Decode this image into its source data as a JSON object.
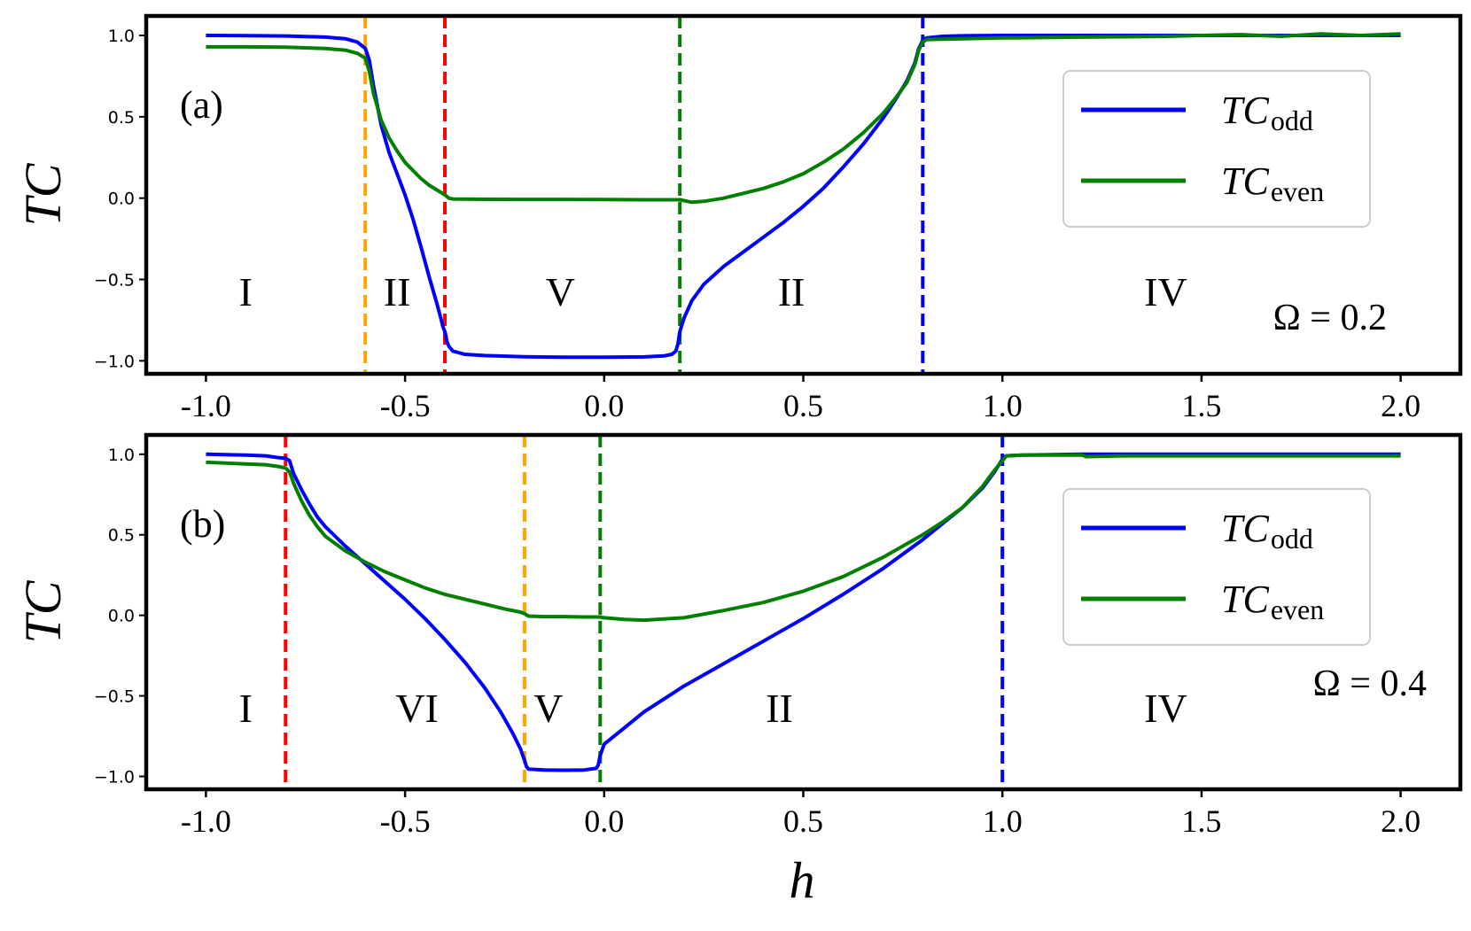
{
  "chart_data": [
    {
      "type": "line",
      "panel_label": "(a)",
      "annotation": "Ω = 0.2",
      "xlabel": "",
      "ylabel": "TC",
      "xlim": [
        -1.15,
        2.15
      ],
      "ylim": [
        -1.08,
        1.12
      ],
      "xticks": [
        "-1.0",
        "-0.5",
        "0.0",
        "0.5",
        "1.0",
        "1.5",
        "2.0"
      ],
      "xtick_values": [
        -1.0,
        -0.5,
        0.0,
        0.5,
        1.0,
        1.5,
        2.0
      ],
      "yticks": [
        "1.0",
        "0.5",
        "0.0",
        "−0.5",
        "−1.0"
      ],
      "ytick_values": [
        1.0,
        0.5,
        0.0,
        -0.5,
        -1.0
      ],
      "legend": {
        "position": "upper-right",
        "entries": [
          {
            "main": "TC",
            "sub": "odd",
            "color": "#0000ff"
          },
          {
            "main": "TC",
            "sub": "even",
            "color": "#007f00"
          }
        ]
      },
      "vlines": [
        {
          "x": -0.6,
          "color": "#ffa500"
        },
        {
          "x": -0.4,
          "color": "#ff0000"
        },
        {
          "x": 0.19,
          "color": "#007f00"
        },
        {
          "x": 0.8,
          "color": "#0000ff"
        }
      ],
      "regions": [
        {
          "label": "I",
          "x": -0.9
        },
        {
          "label": "II",
          "x": -0.52
        },
        {
          "label": "V",
          "x": -0.11
        },
        {
          "label": "II",
          "x": 0.47
        },
        {
          "label": "IV",
          "x": 1.41
        }
      ],
      "series": [
        {
          "name": "TC_odd",
          "color": "#0000ff",
          "x": [
            -1.0,
            -0.9,
            -0.8,
            -0.7,
            -0.65,
            -0.62,
            -0.6,
            -0.59,
            -0.58,
            -0.56,
            -0.54,
            -0.52,
            -0.5,
            -0.48,
            -0.46,
            -0.44,
            -0.42,
            -0.41,
            -0.405,
            -0.4,
            -0.398,
            -0.395,
            -0.39,
            -0.38,
            -0.35,
            -0.3,
            -0.2,
            -0.1,
            0.0,
            0.1,
            0.15,
            0.17,
            0.18,
            0.185,
            0.19,
            0.2,
            0.22,
            0.25,
            0.3,
            0.35,
            0.4,
            0.45,
            0.5,
            0.55,
            0.6,
            0.65,
            0.7,
            0.73,
            0.76,
            0.78,
            0.79,
            0.8,
            0.81,
            0.85,
            0.9,
            1.0,
            1.5,
            2.0
          ],
          "y": [
            1.0,
            0.999,
            0.997,
            0.99,
            0.98,
            0.96,
            0.92,
            0.85,
            0.7,
            0.45,
            0.28,
            0.15,
            0.02,
            -0.13,
            -0.3,
            -0.48,
            -0.65,
            -0.74,
            -0.79,
            -0.82,
            -0.84,
            -0.88,
            -0.91,
            -0.94,
            -0.96,
            -0.968,
            -0.975,
            -0.978,
            -0.978,
            -0.976,
            -0.97,
            -0.96,
            -0.94,
            -0.9,
            -0.82,
            -0.74,
            -0.63,
            -0.53,
            -0.42,
            -0.33,
            -0.24,
            -0.15,
            -0.05,
            0.06,
            0.19,
            0.33,
            0.49,
            0.6,
            0.72,
            0.83,
            0.92,
            0.97,
            0.985,
            0.995,
            0.998,
            1.0,
            1.0,
            1.0
          ]
        },
        {
          "name": "TC_even",
          "color": "#007f00",
          "x": [
            -1.0,
            -0.9,
            -0.8,
            -0.7,
            -0.65,
            -0.62,
            -0.6,
            -0.59,
            -0.58,
            -0.56,
            -0.54,
            -0.52,
            -0.5,
            -0.48,
            -0.46,
            -0.44,
            -0.42,
            -0.4,
            -0.39,
            -0.38,
            -0.35,
            -0.3,
            -0.2,
            -0.1,
            0.0,
            0.1,
            0.19,
            0.22,
            0.25,
            0.3,
            0.35,
            0.4,
            0.45,
            0.5,
            0.55,
            0.6,
            0.65,
            0.7,
            0.73,
            0.76,
            0.78,
            0.79,
            0.8,
            0.81,
            0.9,
            1.0,
            1.1,
            1.2,
            1.3,
            1.4,
            1.5,
            1.6,
            1.7,
            1.8,
            1.9,
            2.0
          ],
          "y": [
            0.93,
            0.93,
            0.928,
            0.92,
            0.91,
            0.89,
            0.86,
            0.78,
            0.65,
            0.48,
            0.37,
            0.29,
            0.22,
            0.17,
            0.12,
            0.08,
            0.05,
            0.02,
            0.0,
            -0.005,
            -0.006,
            -0.007,
            -0.008,
            -0.008,
            -0.009,
            -0.01,
            -0.01,
            -0.025,
            -0.02,
            0.0,
            0.03,
            0.06,
            0.1,
            0.15,
            0.22,
            0.3,
            0.4,
            0.52,
            0.61,
            0.71,
            0.82,
            0.91,
            0.96,
            0.975,
            0.98,
            0.985,
            0.987,
            0.99,
            0.992,
            0.994,
            1.0,
            1.005,
            0.995,
            1.01,
            1.0,
            1.01
          ]
        }
      ]
    },
    {
      "type": "line",
      "panel_label": "(b)",
      "annotation": "Ω = 0.4",
      "xlabel": "h",
      "ylabel": "TC",
      "xlim": [
        -1.15,
        2.15
      ],
      "ylim": [
        -1.08,
        1.12
      ],
      "xticks": [
        "-1.0",
        "-0.5",
        "0.0",
        "0.5",
        "1.0",
        "1.5",
        "2.0"
      ],
      "xtick_values": [
        -1.0,
        -0.5,
        0.0,
        0.5,
        1.0,
        1.5,
        2.0
      ],
      "yticks": [
        "1.0",
        "0.5",
        "0.0",
        "−0.5",
        "−1.0"
      ],
      "ytick_values": [
        1.0,
        0.5,
        0.0,
        -0.5,
        -1.0
      ],
      "legend": {
        "position": "upper-right",
        "entries": [
          {
            "main": "TC",
            "sub": "odd",
            "color": "#0000ff"
          },
          {
            "main": "TC",
            "sub": "even",
            "color": "#007f00"
          }
        ]
      },
      "vlines": [
        {
          "x": -0.8,
          "color": "#ff0000"
        },
        {
          "x": -0.2,
          "color": "#ffa500"
        },
        {
          "x": -0.01,
          "color": "#007f00"
        },
        {
          "x": 1.0,
          "color": "#0000ff"
        }
      ],
      "regions": [
        {
          "label": "I",
          "x": -0.9
        },
        {
          "label": "VI",
          "x": -0.47
        },
        {
          "label": "V",
          "x": -0.14
        },
        {
          "label": "II",
          "x": 0.44
        },
        {
          "label": "IV",
          "x": 1.41
        }
      ],
      "series": [
        {
          "name": "TC_odd",
          "color": "#0000ff",
          "x": [
            -1.0,
            -0.9,
            -0.85,
            -0.82,
            -0.8,
            -0.79,
            -0.78,
            -0.76,
            -0.74,
            -0.72,
            -0.7,
            -0.65,
            -0.6,
            -0.55,
            -0.5,
            -0.45,
            -0.4,
            -0.35,
            -0.3,
            -0.26,
            -0.23,
            -0.21,
            -0.2,
            -0.195,
            -0.19,
            -0.15,
            -0.1,
            -0.05,
            -0.02,
            -0.015,
            -0.01,
            0.0,
            0.05,
            0.1,
            0.2,
            0.3,
            0.4,
            0.5,
            0.6,
            0.7,
            0.8,
            0.85,
            0.9,
            0.95,
            0.98,
            1.0,
            1.01,
            1.05,
            1.2,
            1.5,
            2.0
          ],
          "y": [
            1.0,
            0.995,
            0.99,
            0.98,
            0.975,
            0.96,
            0.88,
            0.78,
            0.69,
            0.61,
            0.55,
            0.43,
            0.32,
            0.21,
            0.1,
            -0.02,
            -0.15,
            -0.29,
            -0.45,
            -0.6,
            -0.73,
            -0.83,
            -0.9,
            -0.94,
            -0.955,
            -0.96,
            -0.962,
            -0.96,
            -0.95,
            -0.93,
            -0.87,
            -0.8,
            -0.7,
            -0.6,
            -0.44,
            -0.3,
            -0.16,
            -0.02,
            0.13,
            0.29,
            0.47,
            0.57,
            0.67,
            0.79,
            0.89,
            0.97,
            0.99,
            0.995,
            1.0,
            1.0,
            1.0
          ]
        },
        {
          "name": "TC_even",
          "color": "#007f00",
          "x": [
            -1.0,
            -0.9,
            -0.85,
            -0.82,
            -0.8,
            -0.79,
            -0.78,
            -0.76,
            -0.74,
            -0.72,
            -0.7,
            -0.65,
            -0.6,
            -0.55,
            -0.5,
            -0.45,
            -0.4,
            -0.35,
            -0.3,
            -0.25,
            -0.21,
            -0.2,
            -0.19,
            -0.15,
            -0.1,
            -0.05,
            -0.01,
            0.0,
            0.05,
            0.1,
            0.2,
            0.3,
            0.4,
            0.5,
            0.6,
            0.7,
            0.8,
            0.85,
            0.9,
            0.95,
            0.98,
            1.0,
            1.01,
            1.05,
            1.2,
            1.21,
            1.3,
            1.5,
            1.7,
            2.0
          ],
          "y": [
            0.95,
            0.94,
            0.935,
            0.925,
            0.915,
            0.89,
            0.82,
            0.71,
            0.62,
            0.55,
            0.49,
            0.4,
            0.33,
            0.27,
            0.22,
            0.17,
            0.13,
            0.1,
            0.07,
            0.04,
            0.02,
            0.01,
            -0.005,
            -0.008,
            -0.008,
            -0.01,
            -0.01,
            -0.015,
            -0.025,
            -0.03,
            -0.015,
            0.03,
            0.08,
            0.15,
            0.24,
            0.36,
            0.5,
            0.58,
            0.67,
            0.8,
            0.9,
            0.96,
            0.99,
            0.995,
            0.995,
            0.985,
            0.99,
            0.99,
            0.99,
            0.99
          ]
        }
      ]
    }
  ]
}
